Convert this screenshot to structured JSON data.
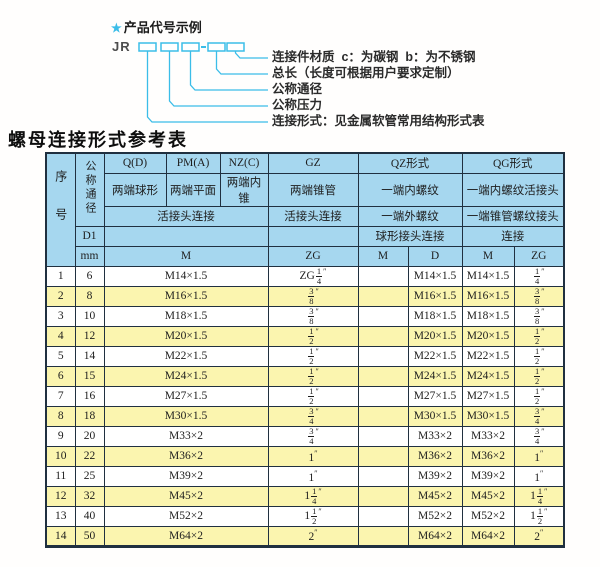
{
  "diagram": {
    "star_icon": "★",
    "title": "产品代号示例",
    "prefix": "JR",
    "labels": [
      "连接件材质  c：为碳钢  b：为不锈钢",
      "总长（长度可根据用户要求定制）",
      "公称通径",
      "公称压力",
      "连接形式：见金属软管常用结构形式表"
    ]
  },
  "table": {
    "title": "螺母连接形式参考表",
    "header": {
      "seq": "序号",
      "dn": "公称通径",
      "col_q": "Q(D)",
      "col_pm": "PM(A)",
      "col_nz": "NZ(C)",
      "col_gz": "GZ",
      "col_qz": "QZ形式",
      "col_qg": "QG形式",
      "q_desc": "两端球形",
      "pm_desc": "两端平面",
      "nz_desc": "两端内锥",
      "gz_desc": "两端锥管",
      "qz_desc": "一端内螺纹",
      "qg_desc": "一端内螺纹活接头",
      "qpmnz_conn": "活接头连接",
      "gz_conn": "活接头连接",
      "qz_conn2": "一端外螺纹",
      "qg_conn2": "一端锥管螺纹接头",
      "d1": "D1",
      "qz_conn3": "球形接头连接",
      "qg_conn3": "连接",
      "mm": "mm",
      "m1": "M",
      "zg1": "ZG",
      "qz_m": "M",
      "qz_d": "D",
      "qg_m": "M",
      "qg_zg": "ZG"
    },
    "rows": [
      [
        "1",
        "6",
        "M14×1.5",
        "ZG 1/4″",
        "",
        "M14×1.5",
        "M14×1.5",
        "1/4″"
      ],
      [
        "2",
        "8",
        "M16×1.5",
        "3/8″",
        "",
        "M16×1.5",
        "M16×1.5",
        "3/8″"
      ],
      [
        "3",
        "10",
        "M18×1.5",
        "3/8″",
        "",
        "M18×1.5",
        "M18×1.5",
        "3/8″"
      ],
      [
        "4",
        "12",
        "M20×1.5",
        "1/2″",
        "",
        "M20×1.5",
        "M20×1.5",
        "1/2″"
      ],
      [
        "5",
        "14",
        "M22×1.5",
        "1/2″",
        "",
        "M22×1.5",
        "M22×1.5",
        "1/2″"
      ],
      [
        "6",
        "15",
        "M24×1.5",
        "1/2″",
        "",
        "M24×1.5",
        "M24×1.5",
        "1/2″"
      ],
      [
        "7",
        "16",
        "M27×1.5",
        "1/2″",
        "",
        "M27×1.5",
        "M27×1.5",
        "1/2″"
      ],
      [
        "8",
        "18",
        "M30×1.5",
        "3/4″",
        "",
        "M30×1.5",
        "M30×1.5",
        "3/4″"
      ],
      [
        "9",
        "20",
        "M33×2",
        "3/4″",
        "",
        "M33×2",
        "M33×2",
        "3/4″"
      ],
      [
        "10",
        "22",
        "M36×2",
        "1″",
        "",
        "M36×2",
        "M36×2",
        "1″"
      ],
      [
        "11",
        "25",
        "M39×2",
        "1″",
        "",
        "M39×2",
        "M39×2",
        "1″"
      ],
      [
        "12",
        "32",
        "M45×2",
        "1 1/4″",
        "",
        "M45×2",
        "M45×2",
        "1 1/4″"
      ],
      [
        "13",
        "40",
        "M52×2",
        "1 1/2″",
        "",
        "M52×2",
        "M52×2",
        "1 1/2″"
      ],
      [
        "14",
        "50",
        "M64×2",
        "2″",
        "",
        "M64×2",
        "M64×2",
        "2″"
      ]
    ]
  },
  "colors": {
    "accent_cyan": "#3bbde8",
    "header_bg": "#a6d7ef",
    "row_alt_bg": "#fbf5af",
    "border": "#203040"
  }
}
